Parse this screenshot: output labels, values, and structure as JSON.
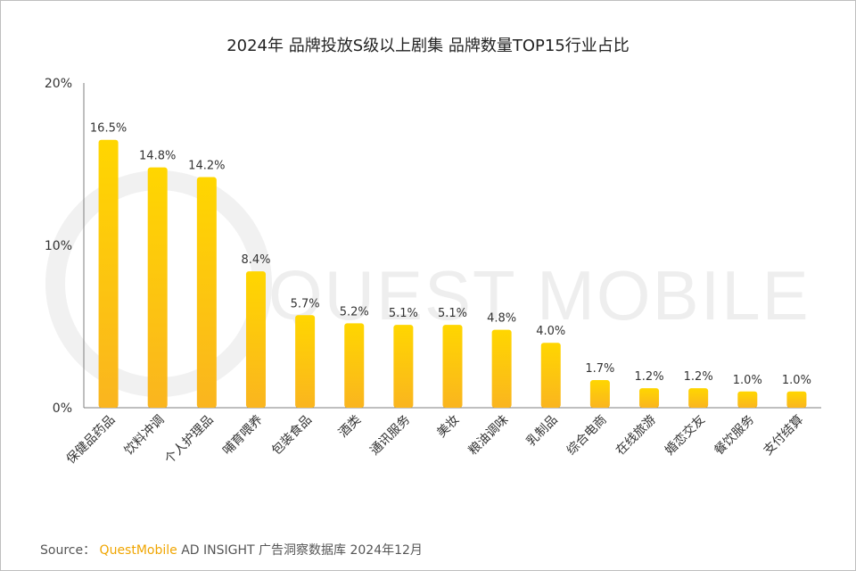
{
  "colors": {
    "bar_top": "#ffd600",
    "bar_bottom": "#fab51f",
    "axis": "#7f7f7f",
    "text": "#333333",
    "brand": "#f0a500"
  },
  "watermark": "QUEST MOBILE",
  "chart_data": {
    "type": "bar",
    "title": "2024年 品牌投放S级以上剧集 品牌数量TOP15行业占比",
    "xlabel": "",
    "ylabel": "",
    "ylim": [
      0,
      20
    ],
    "y_ticks": [
      {
        "value": 0,
        "label": "0%"
      },
      {
        "value": 10,
        "label": "10%"
      },
      {
        "value": 20,
        "label": "20%"
      }
    ],
    "categories": [
      "保健品药品",
      "饮料冲调",
      "个人护理品",
      "哺育喂养",
      "包装食品",
      "酒类",
      "通讯服务",
      "美妆",
      "粮油调味",
      "乳制品",
      "综合电商",
      "在线旅游",
      "婚恋交友",
      "餐饮服务",
      "支付结算"
    ],
    "values": [
      16.5,
      14.8,
      14.2,
      8.4,
      5.7,
      5.2,
      5.1,
      5.1,
      4.8,
      4.0,
      1.7,
      1.2,
      1.2,
      1.0,
      1.0
    ],
    "value_labels": [
      "16.5%",
      "14.8%",
      "14.2%",
      "8.4%",
      "5.7%",
      "5.2%",
      "5.1%",
      "5.1%",
      "4.8%",
      "4.0%",
      "1.7%",
      "1.2%",
      "1.2%",
      "1.0%",
      "1.0%"
    ]
  },
  "source": {
    "prefix": "Source：",
    "brand": "QuestMobile",
    "rest": "AD INSIGHT 广告洞察数据库 2024年12月"
  }
}
